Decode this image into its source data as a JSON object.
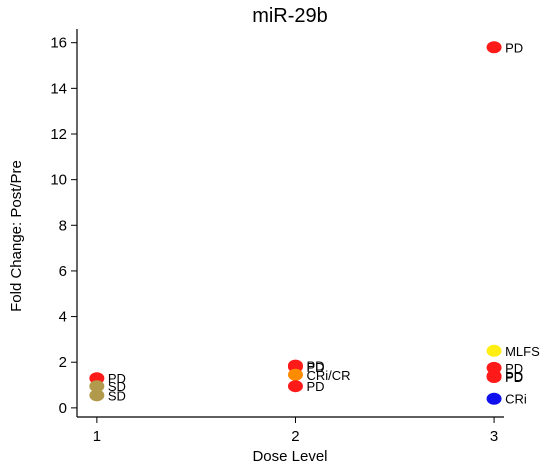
{
  "chart_data": {
    "type": "scatter",
    "title": "miR-29b",
    "xlabel": "Dose Level",
    "ylabel": "Fold Change: Post/Pre",
    "xlim": [
      0.9,
      3.05
    ],
    "ylim": [
      -0.4,
      16.6
    ],
    "xticks": [
      "1",
      "2",
      "3"
    ],
    "yticks": [
      "0",
      "2",
      "4",
      "6",
      "8",
      "10",
      "12",
      "14",
      "16"
    ],
    "grid": false,
    "colors": {
      "PD": "#ff1a1a",
      "SD": "#b29a4c",
      "CRi/CR": "#ff8c00",
      "MLFS": "#ffee11",
      "CRi": "#1010ee"
    },
    "points": [
      {
        "x": 1,
        "y": 1.3,
        "label": "PD"
      },
      {
        "x": 1,
        "y": 0.95,
        "label": "SD"
      },
      {
        "x": 1,
        "y": 0.55,
        "label": "SD"
      },
      {
        "x": 2,
        "y": 1.85,
        "label": "PD"
      },
      {
        "x": 2,
        "y": 1.8,
        "label": "PD"
      },
      {
        "x": 2,
        "y": 1.45,
        "label": "CRi/CR"
      },
      {
        "x": 2,
        "y": 0.95,
        "label": "PD"
      },
      {
        "x": 3,
        "y": 15.8,
        "label": "PD"
      },
      {
        "x": 3,
        "y": 2.5,
        "label": "MLFS"
      },
      {
        "x": 3,
        "y": 1.75,
        "label": "PD"
      },
      {
        "x": 3,
        "y": 1.4,
        "label": "PD"
      },
      {
        "x": 3,
        "y": 1.35,
        "label": "PD"
      },
      {
        "x": 3,
        "y": 0.4,
        "label": "CRi"
      }
    ]
  }
}
